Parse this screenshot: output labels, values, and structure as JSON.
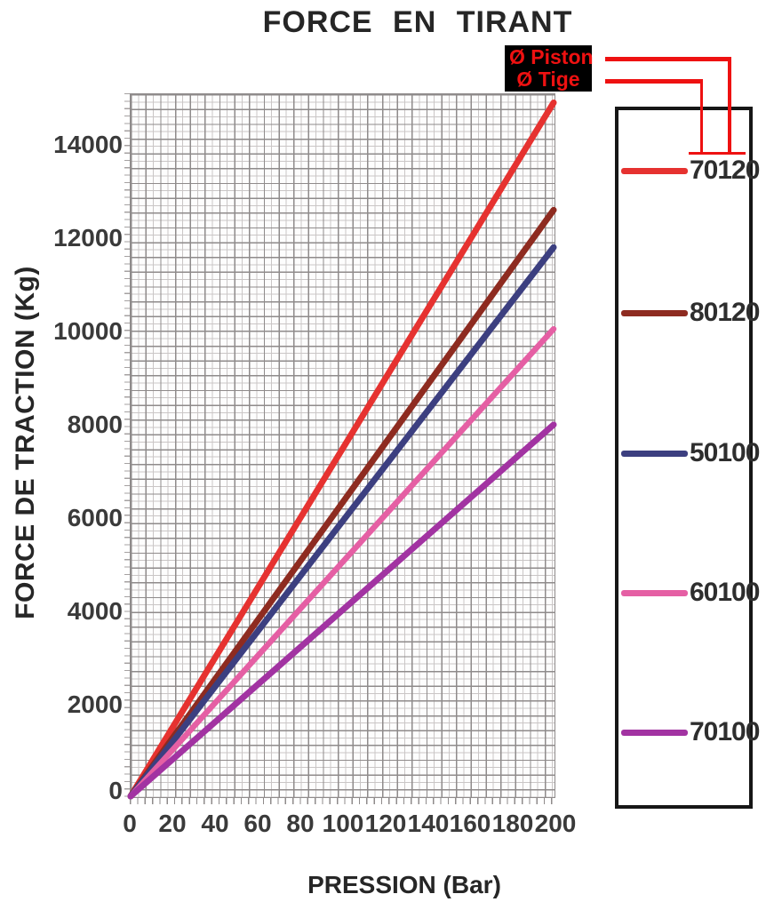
{
  "title": "FORCE  EN  TIRANT",
  "axes": {
    "y_title": "FORCE DE TRACTION (Kg)",
    "x_title": "PRESSION (Bar)",
    "y_ticks": [
      "0",
      "2000",
      "4000",
      "6000",
      "8000",
      "10000",
      "12000",
      "14000"
    ],
    "x_ticks": [
      "0",
      "20",
      "40",
      "60",
      "80",
      "100",
      "120",
      "140",
      "160",
      "180",
      "200"
    ]
  },
  "annotation": {
    "piston_label": "Ø Piston",
    "tige_label": "Ø Tige",
    "text_color": "#ee1111",
    "box_color": "#000000",
    "note": "arrows point to digits of legend code 70120: tige = first digits (70), piston = last digits (120)"
  },
  "legend": {
    "position": "right"
  },
  "chart_data": {
    "type": "line",
    "title": "FORCE EN TIRANT",
    "xlabel": "PRESSION (Bar)",
    "ylabel": "FORCE DE TRACTION (Kg)",
    "xlim": [
      0,
      200
    ],
    "ylim": [
      0,
      15100
    ],
    "x_ticks": [
      0,
      20,
      40,
      60,
      80,
      100,
      120,
      140,
      160,
      180,
      200
    ],
    "y_ticks": [
      0,
      2000,
      4000,
      6000,
      8000,
      10000,
      12000,
      14000
    ],
    "grid": true,
    "legend_position": "right",
    "series": [
      {
        "name": "70120",
        "tige_mm": 70,
        "piston_mm": 120,
        "color": "#e63230",
        "points": [
          [
            0,
            0
          ],
          [
            200,
            14900
          ]
        ]
      },
      {
        "name": "80120",
        "tige_mm": 80,
        "piston_mm": 120,
        "color": "#8e2b20",
        "points": [
          [
            0,
            0
          ],
          [
            200,
            12600
          ]
        ]
      },
      {
        "name": "50100",
        "tige_mm": 50,
        "piston_mm": 100,
        "color": "#3c3f80",
        "points": [
          [
            0,
            0
          ],
          [
            200,
            11800
          ]
        ]
      },
      {
        "name": "60100",
        "tige_mm": 60,
        "piston_mm": 100,
        "color": "#e55fa4",
        "points": [
          [
            0,
            0
          ],
          [
            200,
            10050
          ]
        ]
      },
      {
        "name": "70100",
        "tige_mm": 70,
        "piston_mm": 100,
        "color": "#a233a2",
        "points": [
          [
            0,
            0
          ],
          [
            200,
            8000
          ]
        ]
      }
    ]
  }
}
